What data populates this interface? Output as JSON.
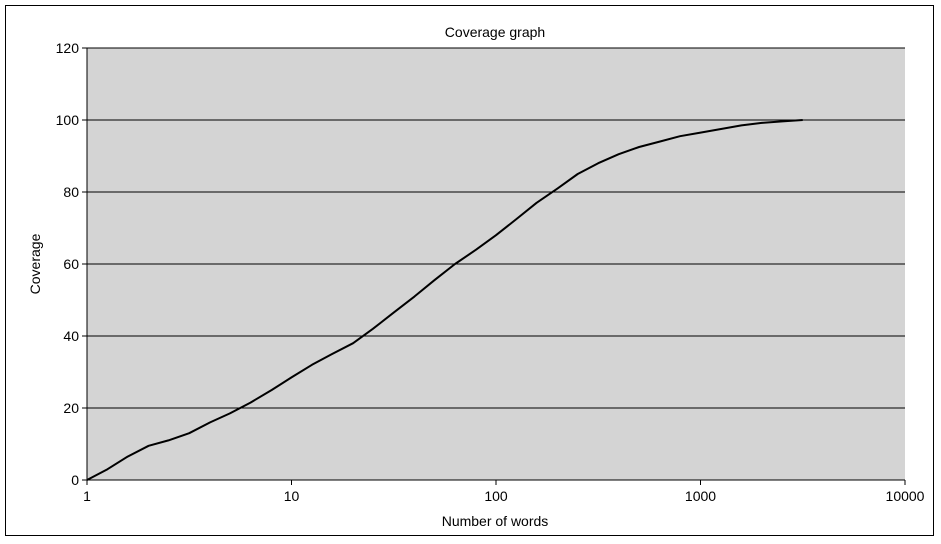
{
  "chart_data": {
    "type": "line",
    "title": "Coverage graph",
    "xlabel": "Number of words",
    "ylabel": "Coverage",
    "x_scale": "log",
    "xlim": [
      1,
      10000
    ],
    "ylim": [
      0,
      120
    ],
    "x_ticks": [
      1,
      10,
      100,
      1000,
      10000
    ],
    "x_tick_labels": [
      "1",
      "10",
      "100",
      "1000",
      "10000"
    ],
    "y_ticks": [
      0,
      20,
      40,
      60,
      80,
      100,
      120
    ],
    "y_tick_labels": [
      "0",
      "20",
      "40",
      "60",
      "80",
      "100",
      "120"
    ],
    "grid": "horizontal",
    "legend": "none",
    "colors": {
      "plot_background": "#d4d4d4",
      "line": "#000000",
      "gridline": "#000000"
    },
    "series": [
      {
        "x": [
          1,
          1.26,
          1.58,
          2,
          2.5,
          3.16,
          4,
          5,
          6.3,
          8,
          10,
          12.6,
          15.8,
          20,
          25,
          31.6,
          40,
          50,
          63,
          80,
          100,
          126,
          158,
          200,
          251,
          316,
          398,
          501,
          631,
          794,
          1000,
          1259,
          1585,
          1995,
          2512,
          3162
        ],
        "y": [
          0,
          3,
          6.5,
          9.5,
          11,
          13,
          16,
          18.5,
          21.5,
          25,
          28.5,
          32,
          35,
          38,
          42,
          46.5,
          51,
          55.5,
          60,
          64,
          68,
          72.5,
          77,
          81,
          85,
          88,
          90.5,
          92.5,
          94,
          95.5,
          96.5,
          97.5,
          98.5,
          99.2,
          99.6,
          100
        ]
      }
    ]
  }
}
